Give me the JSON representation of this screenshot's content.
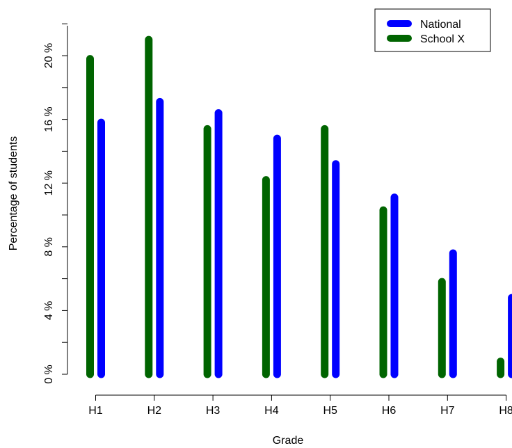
{
  "chart_data": {
    "type": "bar",
    "style": "thick vertical line bars (R type='h')",
    "xlabel": "Grade",
    "ylabel": "Percentage of students",
    "categories": [
      "H1",
      "H2",
      "H3",
      "H4",
      "H5",
      "H6",
      "H7",
      "H8"
    ],
    "series": [
      {
        "name": "School X",
        "color": "#006400",
        "values": [
          19.8,
          21.0,
          15.4,
          12.2,
          15.4,
          10.3,
          5.8,
          0.8
        ]
      },
      {
        "name": "National",
        "color": "#0000ff",
        "values": [
          15.8,
          17.1,
          16.4,
          14.8,
          13.2,
          11.1,
          7.6,
          4.8
        ]
      }
    ],
    "ylim": [
      0,
      22
    ],
    "y_ticks": [
      0,
      2,
      4,
      6,
      8,
      10,
      12,
      14,
      16,
      18,
      20,
      22
    ],
    "y_tick_labels": [
      "0 %",
      "4 %",
      "8 %",
      "12 %",
      "16 %",
      "20 %"
    ],
    "y_labeled_values": [
      0,
      4,
      8,
      12,
      16,
      20
    ],
    "grid": false,
    "legend": {
      "placement": "top-right",
      "order": [
        "National",
        "School X"
      ]
    }
  }
}
